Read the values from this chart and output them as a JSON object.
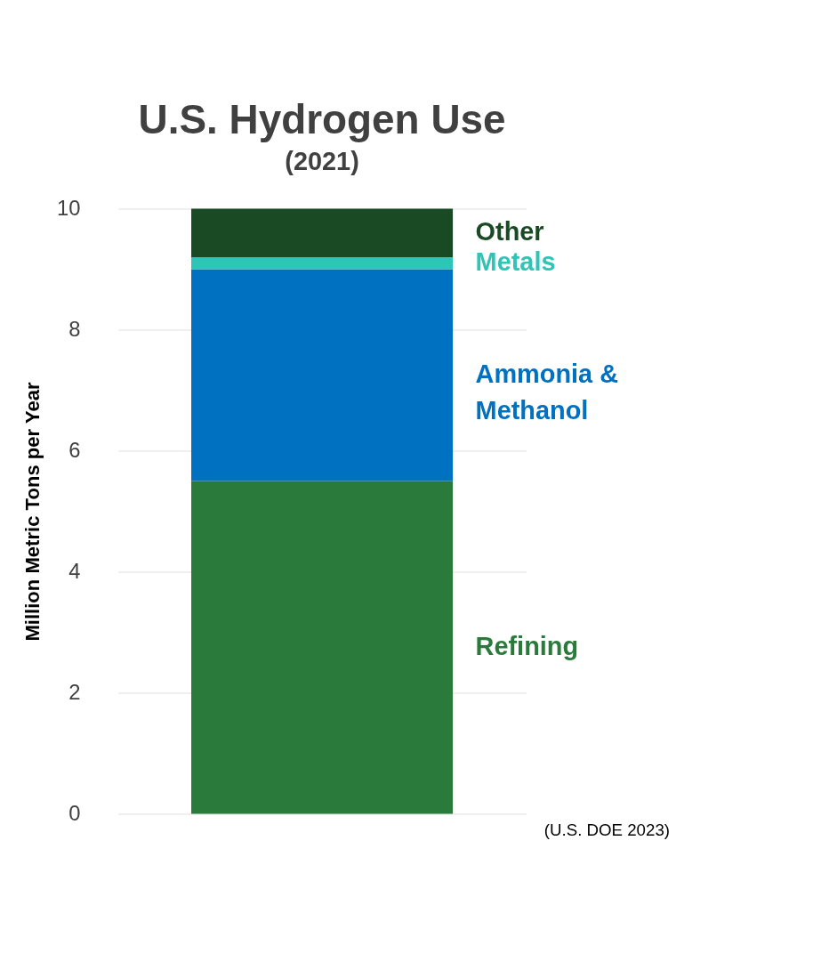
{
  "chart_data": {
    "type": "bar",
    "title": "U.S. Hydrogen Use",
    "subtitle": "(2021)",
    "ylabel": "Million Metric Tons per Year",
    "categories": [
      null
    ],
    "stacked": true,
    "series": [
      {
        "name": "Refining",
        "color": "#2a7a3c",
        "values": [
          5.5
        ]
      },
      {
        "name": "Ammonia & Methanol",
        "color": "#0070c0",
        "values": [
          3.5
        ]
      },
      {
        "name": "Metals",
        "color": "#2ec4b6",
        "values": [
          0.2
        ]
      },
      {
        "name": "Other",
        "color": "#1a4a23",
        "values": [
          0.8
        ]
      }
    ],
    "ylim": [
      0,
      10
    ],
    "yticks": [
      0,
      2,
      4,
      6,
      8,
      10
    ],
    "grid": "y",
    "legend": false,
    "annotations": [
      "(U.S. DOE 2023)"
    ]
  }
}
